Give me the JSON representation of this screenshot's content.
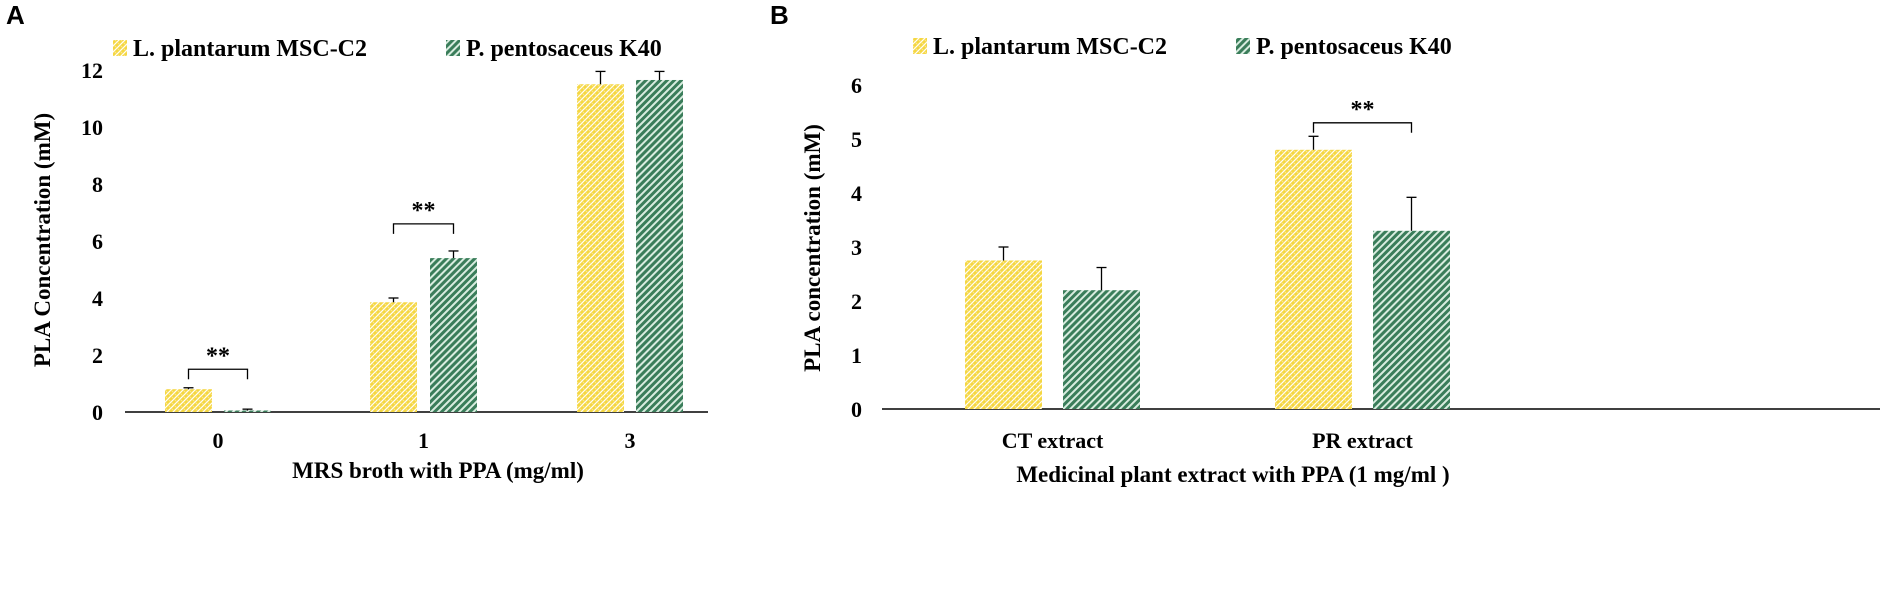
{
  "colors": {
    "series_a": "#f5d742",
    "series_a_pattern": "#ffffff",
    "series_b": "#3a7d5a",
    "series_b_pattern": "#d8ecdf",
    "axis": "#000000"
  },
  "chart_data": [
    {
      "type": "bar",
      "panel_label": "A",
      "categories": [
        "0",
        "1",
        "3"
      ],
      "series": [
        {
          "name": "L. plantarum MSC-C2",
          "values": [
            0.8,
            3.85,
            11.5
          ],
          "errors": [
            0.05,
            0.15,
            0.45
          ]
        },
        {
          "name": "P. pentosaceus K40",
          "values": [
            0.05,
            5.4,
            11.65
          ],
          "errors": [
            0.05,
            0.25,
            0.3
          ]
        }
      ],
      "yticks": [
        "0",
        "2",
        "4",
        "6",
        "8",
        "10",
        "12"
      ],
      "ylim": [
        0,
        12
      ],
      "xlabel": "MRS broth with PPA (mg/ml)",
      "ylabel": "PLA Concentration (mM)",
      "significance": [
        {
          "category_index": 0,
          "label": "**",
          "bracket_y": 1.5
        },
        {
          "category_index": 1,
          "label": "**",
          "bracket_y": 6.6
        }
      ]
    },
    {
      "type": "bar",
      "panel_label": "B",
      "categories": [
        "CT extract",
        "PR extract"
      ],
      "series": [
        {
          "name": "L. plantarum MSC-C2",
          "values": [
            2.75,
            4.8
          ],
          "errors": [
            0.25,
            0.25
          ]
        },
        {
          "name": "P. pentosaceus K40",
          "values": [
            2.2,
            3.3
          ],
          "errors": [
            0.42,
            0.62
          ]
        }
      ],
      "yticks": [
        "0",
        "1",
        "2",
        "3",
        "4",
        "5",
        "6"
      ],
      "ylim": [
        0,
        6
      ],
      "xlabel": "Medicinal plant extract with PPA (1 mg/ml )",
      "ylabel": "PLA concentration (mM)",
      "significance": [
        {
          "category_index": 1,
          "label": "**",
          "bracket_y": 5.3
        }
      ]
    }
  ]
}
